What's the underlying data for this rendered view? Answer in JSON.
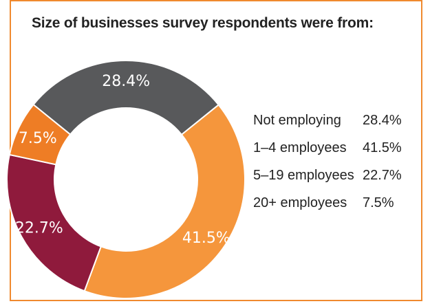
{
  "title": "Size of businesses survey respondents were from:",
  "chart_data": {
    "type": "pie",
    "title": "Size of businesses survey respondents were from:",
    "categories": [
      "Not employing",
      "1–4 employees",
      "5–19 employees",
      "20+ employees"
    ],
    "values": [
      28.4,
      41.5,
      22.7,
      7.5
    ],
    "value_labels": [
      "28.4%",
      "41.5%",
      "22.7%",
      "7.5%"
    ],
    "colors": [
      "#58595b",
      "#f5963c",
      "#8f1a3c",
      "#ee7d25"
    ],
    "donut": true,
    "legend_position": "right"
  },
  "legend": [
    {
      "label": "Not employing",
      "value": "28.4%"
    },
    {
      "label": "1–4 employees",
      "value": "41.5%"
    },
    {
      "label": "5–19 employees",
      "value": "22.7%"
    },
    {
      "label": "20+ employees",
      "value": "7.5%"
    }
  ]
}
